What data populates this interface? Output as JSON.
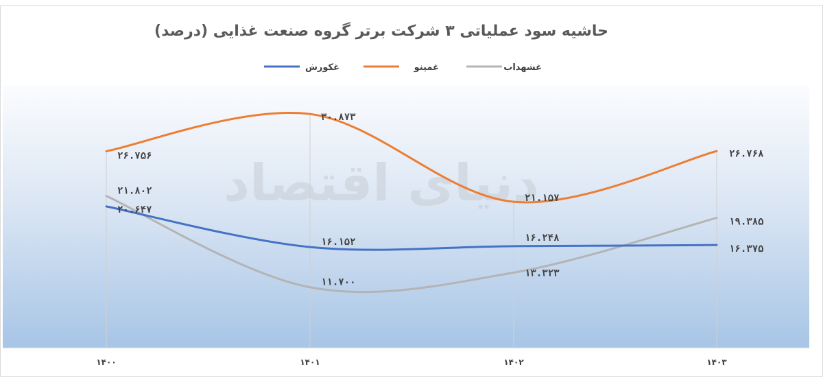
{
  "watermark": "دنیای اقتصاد",
  "chart_data": {
    "type": "line",
    "title": "حاشیه سود عملیاتی ۳ شرکت برتر گروه صنعت غذایی (درصد)",
    "xlabel": "",
    "ylabel": "",
    "categories": [
      "۱۴۰۰",
      "۱۴۰۱",
      "۱۴۰۲",
      "۱۴۰۳"
    ],
    "ylim": [
      5,
      34
    ],
    "grid": false,
    "legend_position": "top",
    "series": [
      {
        "name": "غشهداب",
        "color": "#b4b4b4",
        "values": [
          21.802,
          11.7,
          13.323,
          19.385
        ],
        "labels": [
          "۲۱.۸۰۲",
          "۱۱.۷۰۰",
          "۱۳.۳۲۳",
          "۱۹.۳۸۵"
        ]
      },
      {
        "name": "غمینو",
        "color": "#ed7d31",
        "values": [
          26.756,
          30.873,
          21.157,
          26.768
        ],
        "labels": [
          "۲۶.۷۵۶",
          "۳۰.۸۷۳",
          "۲۱.۱۵۷",
          "۲۶.۷۶۸"
        ]
      },
      {
        "name": "غکورش",
        "color": "#4472c4",
        "values": [
          20.647,
          16.152,
          16.248,
          16.375
        ],
        "labels": [
          "۲۰.۶۴۷",
          "۱۶.۱۵۲",
          "۱۶.۲۴۸",
          "۱۶.۳۷۵"
        ]
      }
    ]
  }
}
